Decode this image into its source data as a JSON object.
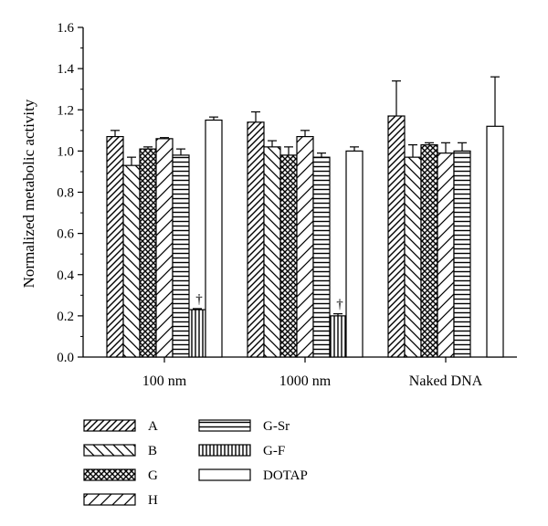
{
  "chart_data": {
    "type": "bar",
    "title": "",
    "xlabel": "",
    "ylabel": "Normalized metabolic activity",
    "ylim": [
      0,
      1.6
    ],
    "yticks": [
      "0.0",
      "0.2",
      "0.4",
      "0.6",
      "0.8",
      "1.0",
      "1.2",
      "1.4",
      "1.6"
    ],
    "categories": [
      "100 nm",
      "1000 nm",
      "Naked DNA"
    ],
    "series": [
      {
        "name": "A",
        "pattern": "diag-right",
        "values": [
          1.07,
          1.14,
          1.17
        ],
        "errors": [
          0.03,
          0.05,
          0.17
        ]
      },
      {
        "name": "B",
        "pattern": "diag-left",
        "values": [
          0.93,
          1.02,
          0.97
        ],
        "errors": [
          0.04,
          0.03,
          0.06
        ]
      },
      {
        "name": "G",
        "pattern": "crosshatch",
        "values": [
          1.01,
          0.98,
          1.03
        ],
        "errors": [
          0.01,
          0.04,
          0.01
        ]
      },
      {
        "name": "H",
        "pattern": "diag-wide",
        "values": [
          1.06,
          1.07,
          0.99
        ],
        "errors": [
          0.005,
          0.03,
          0.05
        ]
      },
      {
        "name": "G-Sr",
        "pattern": "horizontal",
        "values": [
          0.98,
          0.97,
          1.0
        ],
        "errors": [
          0.03,
          0.02,
          0.04
        ]
      },
      {
        "name": "G-F",
        "pattern": "vertical",
        "values": [
          0.23,
          0.2,
          null
        ],
        "errors": [
          0.005,
          0.01,
          null
        ]
      },
      {
        "name": "DOTAP",
        "pattern": "empty",
        "values": [
          1.15,
          1.0,
          1.12
        ],
        "errors": [
          0.015,
          0.02,
          0.24
        ]
      }
    ],
    "annotations": [
      {
        "category": "100 nm",
        "series": "G-F",
        "text": "†"
      },
      {
        "category": "1000 nm",
        "series": "G-F",
        "text": "†"
      }
    ],
    "legend_position": "bottom-left"
  }
}
